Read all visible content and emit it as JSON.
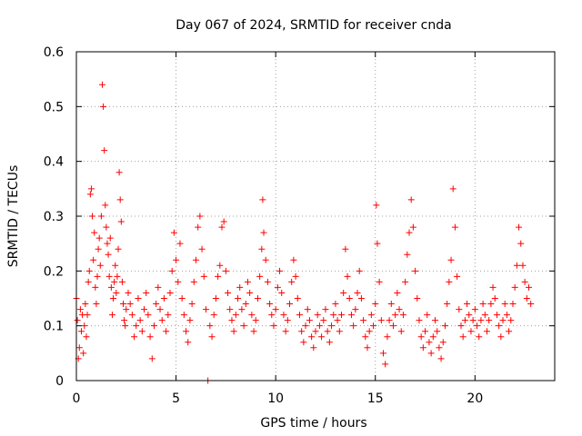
{
  "chart_data": {
    "type": "scatter",
    "title": "Day 067 of 2024, SRMTID for receiver cnda",
    "xlabel": "GPS time / hours",
    "ylabel": "SRMTID / TECUs",
    "xlim": [
      0,
      24
    ],
    "ylim": [
      0,
      0.6
    ],
    "x_ticks": [
      0,
      5,
      10,
      15,
      20
    ],
    "x_tick_labels": [
      "0",
      "5",
      "10",
      "15",
      "20"
    ],
    "y_ticks": [
      0,
      0.1,
      0.2,
      0.3,
      0.4,
      0.5,
      0.6
    ],
    "y_tick_labels": [
      "0",
      "0.1",
      "0.2",
      "0.3",
      "0.4",
      "0.5",
      "0.6"
    ],
    "grid": true,
    "marker": "+",
    "color": "#ff0000",
    "series": [
      {
        "name": "SRMTID",
        "points": [
          [
            0.0,
            0.15
          ],
          [
            0.05,
            0.11
          ],
          [
            0.1,
            0.04
          ],
          [
            0.15,
            0.06
          ],
          [
            0.2,
            0.13
          ],
          [
            0.25,
            0.09
          ],
          [
            0.3,
            0.12
          ],
          [
            0.35,
            0.05
          ],
          [
            0.4,
            0.1
          ],
          [
            0.45,
            0.14
          ],
          [
            0.5,
            0.08
          ],
          [
            0.55,
            0.12
          ],
          [
            0.6,
            0.18
          ],
          [
            0.65,
            0.2
          ],
          [
            0.7,
            0.34
          ],
          [
            0.75,
            0.35
          ],
          [
            0.8,
            0.3
          ],
          [
            0.85,
            0.22
          ],
          [
            0.9,
            0.27
          ],
          [
            0.95,
            0.17
          ],
          [
            1.0,
            0.14
          ],
          [
            1.05,
            0.19
          ],
          [
            1.1,
            0.24
          ],
          [
            1.15,
            0.26
          ],
          [
            1.2,
            0.21
          ],
          [
            1.25,
            0.3
          ],
          [
            1.3,
            0.54
          ],
          [
            1.35,
            0.5
          ],
          [
            1.4,
            0.42
          ],
          [
            1.45,
            0.32
          ],
          [
            1.5,
            0.28
          ],
          [
            1.55,
            0.25
          ],
          [
            1.6,
            0.23
          ],
          [
            1.65,
            0.19
          ],
          [
            1.7,
            0.26
          ],
          [
            1.75,
            0.17
          ],
          [
            1.8,
            0.12
          ],
          [
            1.85,
            0.15
          ],
          [
            1.9,
            0.18
          ],
          [
            1.95,
            0.21
          ],
          [
            2.0,
            0.16
          ],
          [
            2.05,
            0.19
          ],
          [
            2.1,
            0.24
          ],
          [
            2.15,
            0.38
          ],
          [
            2.2,
            0.33
          ],
          [
            2.25,
            0.29
          ],
          [
            2.3,
            0.18
          ],
          [
            2.35,
            0.14
          ],
          [
            2.4,
            0.11
          ],
          [
            2.45,
            0.1
          ],
          [
            2.5,
            0.13
          ],
          [
            2.6,
            0.16
          ],
          [
            2.7,
            0.14
          ],
          [
            2.8,
            0.12
          ],
          [
            2.9,
            0.08
          ],
          [
            3.0,
            0.1
          ],
          [
            3.1,
            0.15
          ],
          [
            3.2,
            0.11
          ],
          [
            3.3,
            0.09
          ],
          [
            3.4,
            0.13
          ],
          [
            3.5,
            0.16
          ],
          [
            3.6,
            0.12
          ],
          [
            3.7,
            0.08
          ],
          [
            3.8,
            0.04
          ],
          [
            3.9,
            0.1
          ],
          [
            4.0,
            0.14
          ],
          [
            4.1,
            0.17
          ],
          [
            4.2,
            0.13
          ],
          [
            4.3,
            0.11
          ],
          [
            4.4,
            0.15
          ],
          [
            4.5,
            0.09
          ],
          [
            4.6,
            0.12
          ],
          [
            4.7,
            0.16
          ],
          [
            4.8,
            0.2
          ],
          [
            4.9,
            0.27
          ],
          [
            5.0,
            0.22
          ],
          [
            5.1,
            0.18
          ],
          [
            5.2,
            0.25
          ],
          [
            5.3,
            0.15
          ],
          [
            5.4,
            0.12
          ],
          [
            5.5,
            0.09
          ],
          [
            5.6,
            0.07
          ],
          [
            5.7,
            0.11
          ],
          [
            5.8,
            0.14
          ],
          [
            5.9,
            0.18
          ],
          [
            6.0,
            0.22
          ],
          [
            6.1,
            0.28
          ],
          [
            6.2,
            0.3
          ],
          [
            6.3,
            0.24
          ],
          [
            6.4,
            0.19
          ],
          [
            6.5,
            0.13
          ],
          [
            6.6,
            0.0
          ],
          [
            6.7,
            0.1
          ],
          [
            6.8,
            0.08
          ],
          [
            6.9,
            0.12
          ],
          [
            7.0,
            0.15
          ],
          [
            7.1,
            0.19
          ],
          [
            7.2,
            0.21
          ],
          [
            7.3,
            0.28
          ],
          [
            7.4,
            0.29
          ],
          [
            7.5,
            0.2
          ],
          [
            7.6,
            0.16
          ],
          [
            7.7,
            0.13
          ],
          [
            7.8,
            0.11
          ],
          [
            7.9,
            0.09
          ],
          [
            8.0,
            0.12
          ],
          [
            8.1,
            0.15
          ],
          [
            8.2,
            0.17
          ],
          [
            8.3,
            0.13
          ],
          [
            8.4,
            0.1
          ],
          [
            8.5,
            0.14
          ],
          [
            8.6,
            0.18
          ],
          [
            8.7,
            0.16
          ],
          [
            8.8,
            0.12
          ],
          [
            8.9,
            0.09
          ],
          [
            9.0,
            0.11
          ],
          [
            9.1,
            0.15
          ],
          [
            9.2,
            0.19
          ],
          [
            9.3,
            0.24
          ],
          [
            9.35,
            0.33
          ],
          [
            9.4,
            0.27
          ],
          [
            9.5,
            0.22
          ],
          [
            9.6,
            0.18
          ],
          [
            9.7,
            0.14
          ],
          [
            9.8,
            0.12
          ],
          [
            9.9,
            0.1
          ],
          [
            10.0,
            0.13
          ],
          [
            10.1,
            0.17
          ],
          [
            10.2,
            0.2
          ],
          [
            10.3,
            0.16
          ],
          [
            10.4,
            0.12
          ],
          [
            10.5,
            0.09
          ],
          [
            10.6,
            0.11
          ],
          [
            10.7,
            0.14
          ],
          [
            10.8,
            0.18
          ],
          [
            10.9,
            0.22
          ],
          [
            11.0,
            0.19
          ],
          [
            11.1,
            0.15
          ],
          [
            11.2,
            0.12
          ],
          [
            11.3,
            0.09
          ],
          [
            11.4,
            0.07
          ],
          [
            11.5,
            0.1
          ],
          [
            11.6,
            0.13
          ],
          [
            11.7,
            0.11
          ],
          [
            11.8,
            0.08
          ],
          [
            11.9,
            0.06
          ],
          [
            12.0,
            0.09
          ],
          [
            12.1,
            0.12
          ],
          [
            12.2,
            0.1
          ],
          [
            12.3,
            0.08
          ],
          [
            12.4,
            0.11
          ],
          [
            12.5,
            0.13
          ],
          [
            12.6,
            0.09
          ],
          [
            12.7,
            0.07
          ],
          [
            12.8,
            0.1
          ],
          [
            12.9,
            0.12
          ],
          [
            13.0,
            0.14
          ],
          [
            13.1,
            0.11
          ],
          [
            13.2,
            0.09
          ],
          [
            13.3,
            0.12
          ],
          [
            13.4,
            0.16
          ],
          [
            13.5,
            0.24
          ],
          [
            13.6,
            0.19
          ],
          [
            13.7,
            0.15
          ],
          [
            13.8,
            0.12
          ],
          [
            13.9,
            0.1
          ],
          [
            14.0,
            0.13
          ],
          [
            14.1,
            0.16
          ],
          [
            14.2,
            0.2
          ],
          [
            14.3,
            0.15
          ],
          [
            14.4,
            0.11
          ],
          [
            14.5,
            0.08
          ],
          [
            14.6,
            0.06
          ],
          [
            14.7,
            0.09
          ],
          [
            14.8,
            0.12
          ],
          [
            14.9,
            0.1
          ],
          [
            15.0,
            0.14
          ],
          [
            15.05,
            0.32
          ],
          [
            15.1,
            0.25
          ],
          [
            15.2,
            0.18
          ],
          [
            15.3,
            0.11
          ],
          [
            15.4,
            0.05
          ],
          [
            15.5,
            0.03
          ],
          [
            15.6,
            0.08
          ],
          [
            15.7,
            0.11
          ],
          [
            15.8,
            0.14
          ],
          [
            15.9,
            0.1
          ],
          [
            16.0,
            0.12
          ],
          [
            16.1,
            0.16
          ],
          [
            16.2,
            0.13
          ],
          [
            16.3,
            0.09
          ],
          [
            16.4,
            0.12
          ],
          [
            16.5,
            0.18
          ],
          [
            16.6,
            0.23
          ],
          [
            16.7,
            0.27
          ],
          [
            16.8,
            0.33
          ],
          [
            16.9,
            0.28
          ],
          [
            17.0,
            0.2
          ],
          [
            17.1,
            0.15
          ],
          [
            17.2,
            0.11
          ],
          [
            17.3,
            0.08
          ],
          [
            17.4,
            0.06
          ],
          [
            17.5,
            0.09
          ],
          [
            17.6,
            0.12
          ],
          [
            17.7,
            0.07
          ],
          [
            17.8,
            0.05
          ],
          [
            17.9,
            0.08
          ],
          [
            18.0,
            0.11
          ],
          [
            18.1,
            0.09
          ],
          [
            18.2,
            0.06
          ],
          [
            18.3,
            0.04
          ],
          [
            18.4,
            0.07
          ],
          [
            18.5,
            0.1
          ],
          [
            18.6,
            0.14
          ],
          [
            18.7,
            0.18
          ],
          [
            18.8,
            0.22
          ],
          [
            18.9,
            0.35
          ],
          [
            19.0,
            0.28
          ],
          [
            19.1,
            0.19
          ],
          [
            19.2,
            0.13
          ],
          [
            19.3,
            0.1
          ],
          [
            19.4,
            0.08
          ],
          [
            19.5,
            0.11
          ],
          [
            19.6,
            0.14
          ],
          [
            19.7,
            0.12
          ],
          [
            19.8,
            0.09
          ],
          [
            19.9,
            0.11
          ],
          [
            20.0,
            0.13
          ],
          [
            20.1,
            0.1
          ],
          [
            20.2,
            0.08
          ],
          [
            20.3,
            0.11
          ],
          [
            20.4,
            0.14
          ],
          [
            20.5,
            0.12
          ],
          [
            20.6,
            0.09
          ],
          [
            20.7,
            0.11
          ],
          [
            20.8,
            0.14
          ],
          [
            20.9,
            0.17
          ],
          [
            21.0,
            0.15
          ],
          [
            21.1,
            0.12
          ],
          [
            21.2,
            0.1
          ],
          [
            21.3,
            0.08
          ],
          [
            21.4,
            0.11
          ],
          [
            21.5,
            0.14
          ],
          [
            21.6,
            0.12
          ],
          [
            21.7,
            0.09
          ],
          [
            21.8,
            0.11
          ],
          [
            21.9,
            0.14
          ],
          [
            22.0,
            0.17
          ],
          [
            22.1,
            0.21
          ],
          [
            22.2,
            0.28
          ],
          [
            22.3,
            0.25
          ],
          [
            22.4,
            0.21
          ],
          [
            22.5,
            0.18
          ],
          [
            22.6,
            0.15
          ],
          [
            22.7,
            0.17
          ],
          [
            22.8,
            0.14
          ]
        ]
      }
    ]
  }
}
